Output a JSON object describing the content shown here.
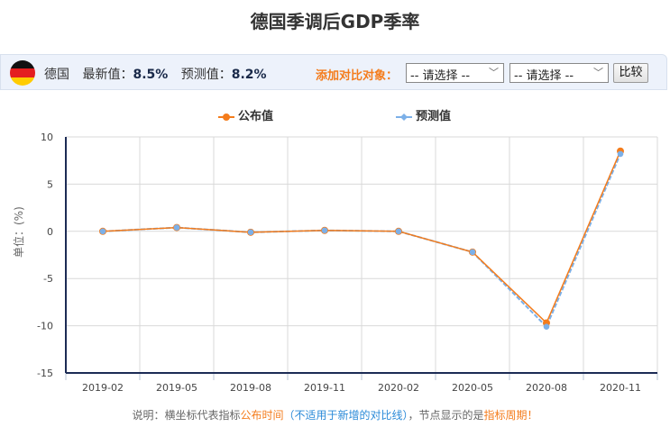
{
  "title": "德国季调后GDP季率",
  "toolbar": {
    "country": "德国",
    "latest_label": "最新值：",
    "latest_value": "8.5%",
    "forecast_label": "预测值：",
    "forecast_value": "8.2%",
    "compare_label": "添加对比对象：",
    "select1": "-- 请选择 --",
    "select2": "-- 请选择 --",
    "compare_button": "比较"
  },
  "legend": {
    "actual": "公布值",
    "forecast": "预测值"
  },
  "note": {
    "p1": "说明：横坐标代表指标",
    "p2": "公布时间",
    "p3": "（不适用于新增的对比线）",
    "p4": "，节点显示的是",
    "p5": "指标周期！"
  },
  "colors": {
    "actual": "#f47c1c",
    "forecast": "#7cb0e8",
    "axis": "#1c2b55",
    "grid": "#d9d9d9"
  },
  "chart_data": {
    "type": "line",
    "title": "德国季调后GDP季率",
    "xlabel": "",
    "ylabel": "单位：(%)",
    "categories": [
      "2019-02",
      "2019-05",
      "2019-08",
      "2019-11",
      "2020-02",
      "2020-05",
      "2020-08",
      "2020-11"
    ],
    "series": [
      {
        "name": "公布值",
        "values": [
          0.0,
          0.4,
          -0.1,
          0.1,
          0.0,
          -2.2,
          -9.7,
          8.5
        ]
      },
      {
        "name": "预测值",
        "values": [
          0.0,
          0.4,
          -0.1,
          0.1,
          0.0,
          -2.2,
          -10.1,
          8.2
        ]
      }
    ],
    "yticks": [
      10,
      5,
      0,
      -5,
      -10,
      -15
    ],
    "ylim": [
      -15,
      10
    ],
    "grid": true,
    "legend_position": "top"
  }
}
